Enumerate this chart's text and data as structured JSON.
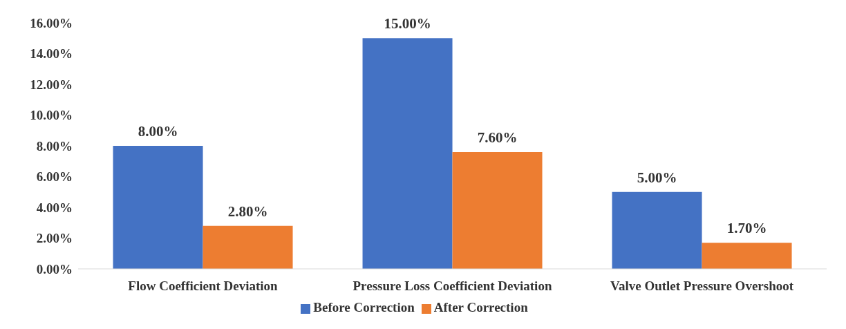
{
  "chart_data": {
    "type": "bar",
    "categories": [
      "Flow Coefficient Deviation",
      "Pressure Loss Coefficient Deviation",
      "Valve Outlet Pressure Overshoot"
    ],
    "series": [
      {
        "name": "Before Correction",
        "color": "#4472c4",
        "values": [
          8,
          15,
          5
        ],
        "value_labels": [
          "8.00%",
          "15.00%",
          "5.00%"
        ]
      },
      {
        "name": "After Correction",
        "color": "#ed7d31",
        "values": [
          2.8,
          7.6,
          1.7
        ],
        "value_labels": [
          "2.80%",
          "7.60%",
          "1.70%"
        ]
      }
    ],
    "ylim": [
      0,
      16
    ],
    "yticks": [
      {
        "value": 0,
        "label": "0.00%"
      },
      {
        "value": 2,
        "label": "2.00%"
      },
      {
        "value": 4,
        "label": "4.00%"
      },
      {
        "value": 6,
        "label": "6.00%"
      },
      {
        "value": 8,
        "label": "8.00%"
      },
      {
        "value": 10,
        "label": "10.00%"
      },
      {
        "value": 12,
        "label": "12.00%"
      },
      {
        "value": 14,
        "label": "14.00%"
      },
      {
        "value": 16,
        "label": "16.00%"
      }
    ],
    "grid": false,
    "legend": "bottom"
  }
}
